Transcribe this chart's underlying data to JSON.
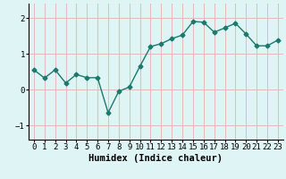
{
  "x": [
    0,
    1,
    2,
    3,
    4,
    5,
    6,
    7,
    8,
    9,
    10,
    11,
    12,
    13,
    14,
    15,
    16,
    17,
    18,
    19,
    20,
    21,
    22,
    23
  ],
  "y": [
    0.55,
    0.32,
    0.55,
    0.18,
    0.42,
    0.33,
    0.33,
    -0.65,
    -0.05,
    0.07,
    0.65,
    1.2,
    1.28,
    1.42,
    1.52,
    1.9,
    1.88,
    1.6,
    1.72,
    1.85,
    1.55,
    1.22,
    1.22,
    1.38
  ],
  "line_color": "#1a7a6e",
  "marker": "D",
  "markersize": 2.5,
  "linewidth": 1.0,
  "xlabel": "Humidex (Indice chaleur)",
  "ylabel": "",
  "xlim": [
    -0.5,
    23.5
  ],
  "ylim": [
    -1.4,
    2.4
  ],
  "yticks": [
    -1,
    0,
    1,
    2
  ],
  "xticks": [
    0,
    1,
    2,
    3,
    4,
    5,
    6,
    7,
    8,
    9,
    10,
    11,
    12,
    13,
    14,
    15,
    16,
    17,
    18,
    19,
    20,
    21,
    22,
    23
  ],
  "bg_color": "#dff4f4",
  "grid_color": "#e8b8b8",
  "tick_fontsize": 6.5,
  "xlabel_fontsize": 7.5
}
